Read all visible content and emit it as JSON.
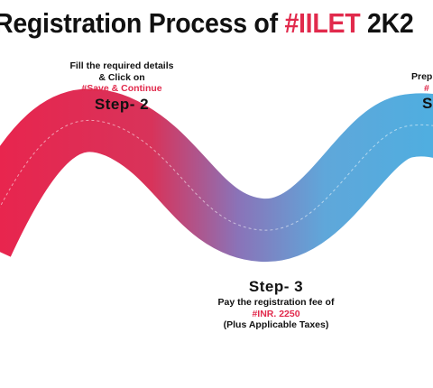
{
  "title": {
    "prefix": "Registration Process of ",
    "highlight": "#IILET",
    "suffix": " 2K2"
  },
  "colors": {
    "accent": "#e12a4c",
    "wave_start": "#e8254e",
    "wave_end": "#4faee0"
  },
  "step2": {
    "line1": "Fill the required details",
    "line2": "& Click on",
    "link": "#Save & Continue",
    "label": "Step- 2"
  },
  "step3": {
    "label": "Step- 3",
    "line1": "Pay the registration fee of",
    "amount": "#INR. 2250",
    "line2": "(Plus Applicable Taxes)"
  },
  "step4_partial": {
    "line1": "Prep",
    "line2": "#",
    "label": "S"
  }
}
